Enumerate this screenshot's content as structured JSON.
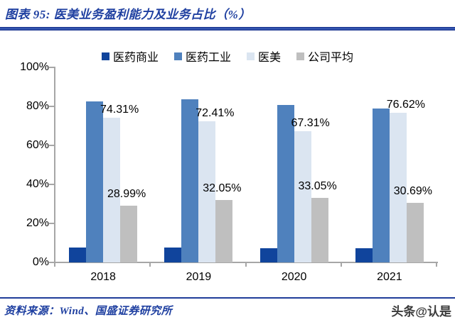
{
  "header": {
    "title": "图表 95:  医美业务盈利能力及业务占比（%）"
  },
  "chart_data": {
    "type": "bar",
    "title": "医美业务盈利能力及业务占比（%）",
    "categories": [
      "2018",
      "2019",
      "2020",
      "2021"
    ],
    "series": [
      {
        "name": "医药商业",
        "color": "#10449c",
        "values": [
          7.5,
          7.5,
          7.3,
          7.2
        ],
        "data_labels": null
      },
      {
        "name": "医药工业",
        "color": "#4f81bd",
        "values": [
          82.5,
          83.6,
          80.7,
          78.9
        ],
        "data_labels": null
      },
      {
        "name": "医美",
        "color": "#dbe5f1",
        "values": [
          74.31,
          72.41,
          67.31,
          76.62
        ],
        "data_labels": [
          "74.31%",
          "72.41%",
          "67.31%",
          "76.62%"
        ]
      },
      {
        "name": "公司平均",
        "color": "#bfbfbf",
        "values": [
          28.99,
          32.05,
          33.05,
          30.69
        ],
        "data_labels": [
          "28.99%",
          "32.05%",
          "33.05%",
          "30.69%"
        ]
      }
    ],
    "ylim": [
      0,
      100
    ],
    "ytick_labels": [
      "0%",
      "20%",
      "40%",
      "60%",
      "80%",
      "100%"
    ],
    "legend_position": "top",
    "grid": false,
    "axis_color": "#a6a6a6"
  },
  "footer": {
    "source": "资料来源：Wind、国盛证券研究所",
    "watermark": "头条@认是"
  }
}
